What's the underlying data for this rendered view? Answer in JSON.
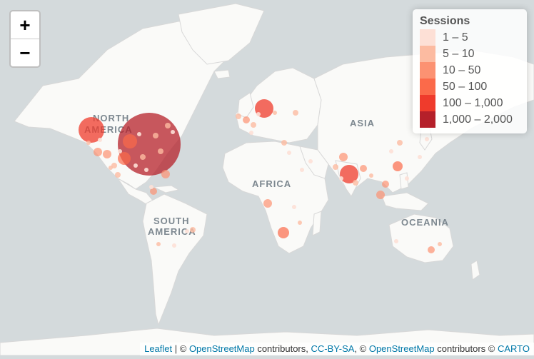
{
  "zoom": {
    "in_label": "+",
    "out_label": "−"
  },
  "legend": {
    "title": "Sessions",
    "items": [
      {
        "label": "1 – 5",
        "color": "#fde0d6"
      },
      {
        "label": "5 – 10",
        "color": "#fcbba1"
      },
      {
        "label": "10 – 50",
        "color": "#fc9272"
      },
      {
        "label": "50 – 100",
        "color": "#fb6a4a"
      },
      {
        "label": "100 – 1,000",
        "color": "#ef3b2c"
      },
      {
        "label": "1,000 – 2,000",
        "color": "#b5202a"
      }
    ]
  },
  "map_labels": {
    "north": "NORTH",
    "america": "AMERICA",
    "south": "SOUTH",
    "south_america": "AMERICA",
    "africa": "AFRICA",
    "asia": "ASIA",
    "oceania": "OCEANIA"
  },
  "attribution": {
    "leaflet": "Leaflet",
    "sep1": " | © ",
    "osm1": "OpenStreetMap",
    "contrib1": " contributors, ",
    "ccbysa": "CC-BY-SA",
    "sep2": ", © ",
    "osm2": "OpenStreetMap",
    "contrib2": " contributors © ",
    "carto": "CARTO"
  },
  "colors": {
    "water": "#d4dadc",
    "land": "#fafaf8",
    "border": "#d0d0d0"
  }
}
